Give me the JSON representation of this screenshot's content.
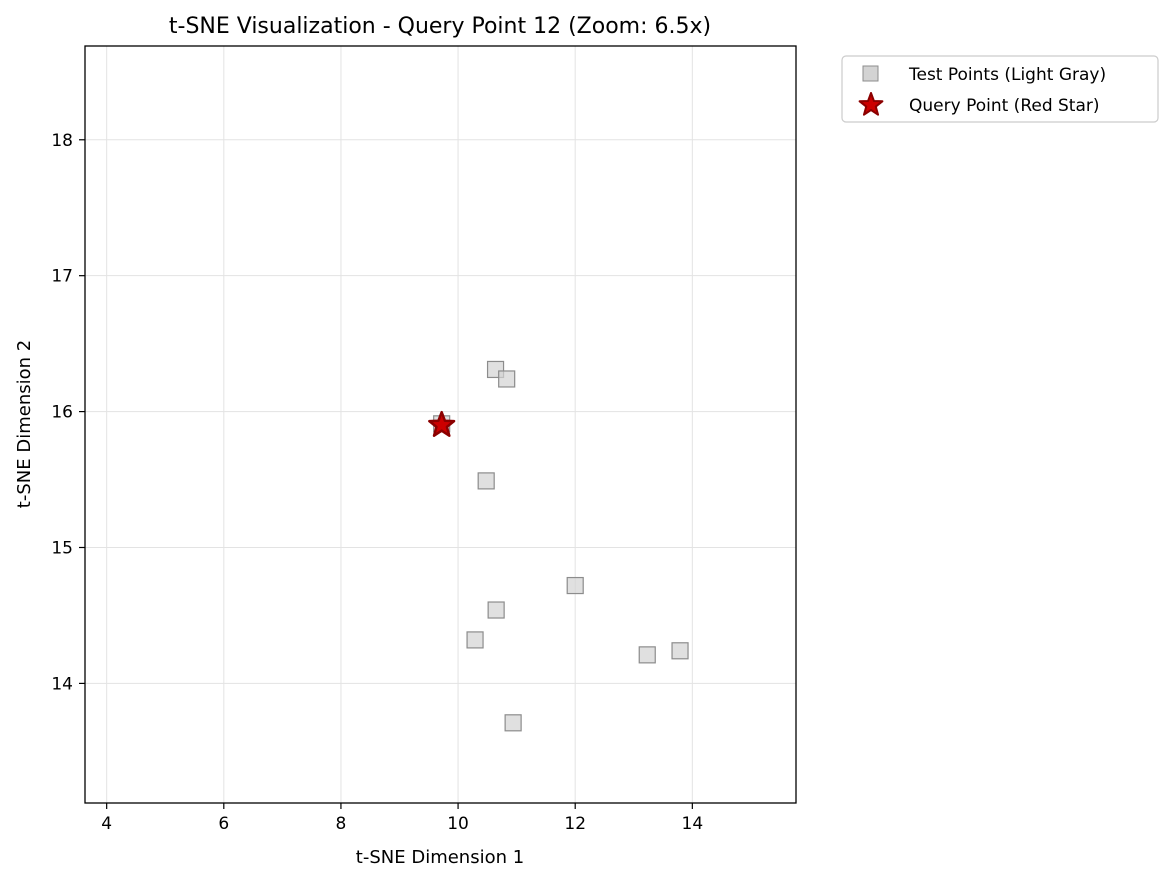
{
  "chart_data": {
    "type": "scatter",
    "title": "t-SNE Visualization - Query Point 12 (Zoom: 6.5x)",
    "xlabel": "t-SNE Dimension 1",
    "ylabel": "t-SNE Dimension 2",
    "xlim": [
      3.63,
      15.77
    ],
    "ylim": [
      13.12,
      18.69
    ],
    "xticks": [
      4,
      6,
      8,
      10,
      12,
      14
    ],
    "yticks": [
      14,
      15,
      16,
      17,
      18
    ],
    "xtick_labels": [
      "4",
      "6",
      "8",
      "10",
      "12",
      "14"
    ],
    "ytick_labels": [
      "14",
      "15",
      "16",
      "17",
      "18"
    ],
    "grid": true,
    "legend_position": "outside-top-right",
    "series": [
      {
        "name": "Test Points (Light Gray)",
        "marker": "square",
        "color": "#d3d3d3",
        "edge_color": "#8c8c8c",
        "points": [
          {
            "x": 10.64,
            "y": 16.31
          },
          {
            "x": 10.83,
            "y": 16.24
          },
          {
            "x": 9.72,
            "y": 15.91
          },
          {
            "x": 10.48,
            "y": 15.49
          },
          {
            "x": 12.0,
            "y": 14.72
          },
          {
            "x": 10.65,
            "y": 14.54
          },
          {
            "x": 10.29,
            "y": 14.32
          },
          {
            "x": 13.79,
            "y": 14.24
          },
          {
            "x": 13.23,
            "y": 14.21
          },
          {
            "x": 10.94,
            "y": 13.71
          }
        ]
      },
      {
        "name": "Query Point (Red Star)",
        "marker": "star",
        "color": "#cc0000",
        "edge_color": "#8b0000",
        "points": [
          {
            "x": 9.72,
            "y": 15.9
          }
        ]
      }
    ]
  }
}
